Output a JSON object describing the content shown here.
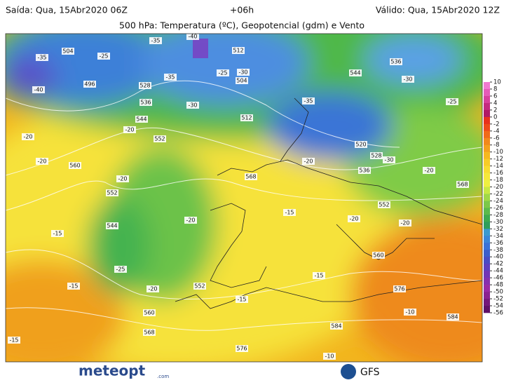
{
  "header": {
    "run": "Saída: Qua, 15Abr2020 06Z",
    "lead": "+06h",
    "valid": "Válido: Qua, 15Abr2020 12Z",
    "title": "500 hPa: Temperatura (ºC), Geopotencial (gdm) e Vento"
  },
  "map": {
    "labels": [
      "-35",
      "504",
      "-40",
      "496",
      "-25",
      "-35",
      "-40",
      "512",
      "-30",
      "504",
      "-25",
      "-35",
      "528",
      "536",
      "-30",
      "544",
      "-20",
      "552",
      "-20",
      "-20",
      "560",
      "-20",
      "552",
      "544",
      "-20",
      "-25",
      "-20",
      "552",
      "560",
      "568",
      "576",
      "-15",
      "-15",
      "-15",
      "568",
      "-15",
      "-20",
      "552",
      "-20",
      "560",
      "576",
      "584",
      "-10",
      "584",
      "-15",
      "-10",
      "544",
      "536",
      "-30",
      "-25",
      "-35",
      "520",
      "528",
      "-30",
      "536",
      "568",
      "-20",
      "-15",
      "512",
      "-20"
    ]
  },
  "colorbar": {
    "ticks": [
      10,
      8,
      6,
      4,
      2,
      0,
      -2,
      -4,
      -6,
      -8,
      -10,
      -12,
      -14,
      -16,
      -18,
      -20,
      -22,
      -24,
      -26,
      -28,
      -30,
      -32,
      -34,
      -36,
      -38,
      -40,
      -42,
      -44,
      -46,
      -48,
      -50,
      -52,
      -54,
      -56
    ],
    "colors": [
      "#f07ad0",
      "#e65bb8",
      "#d8409c",
      "#c42a80",
      "#b01866",
      "#e8301c",
      "#ee4a1a",
      "#f06a1a",
      "#f2881c",
      "#f4a01e",
      "#f6b820",
      "#f8cc26",
      "#f8dc30",
      "#f6e83a",
      "#eef040",
      "#c8e844",
      "#a0d848",
      "#7cc84a",
      "#5cba4c",
      "#3eaa50",
      "#2f9e5c",
      "#3a9ad0",
      "#3a86d8",
      "#3a72d6",
      "#3c5ecc",
      "#4a4cc4",
      "#5e40be",
      "#7236b6",
      "#8630ae",
      "#9a2aa4",
      "#8a2290",
      "#74187a",
      "#5e1066"
    ]
  },
  "footer": {
    "brand": "meteopt",
    "domain": ".com",
    "model": "GFS"
  }
}
